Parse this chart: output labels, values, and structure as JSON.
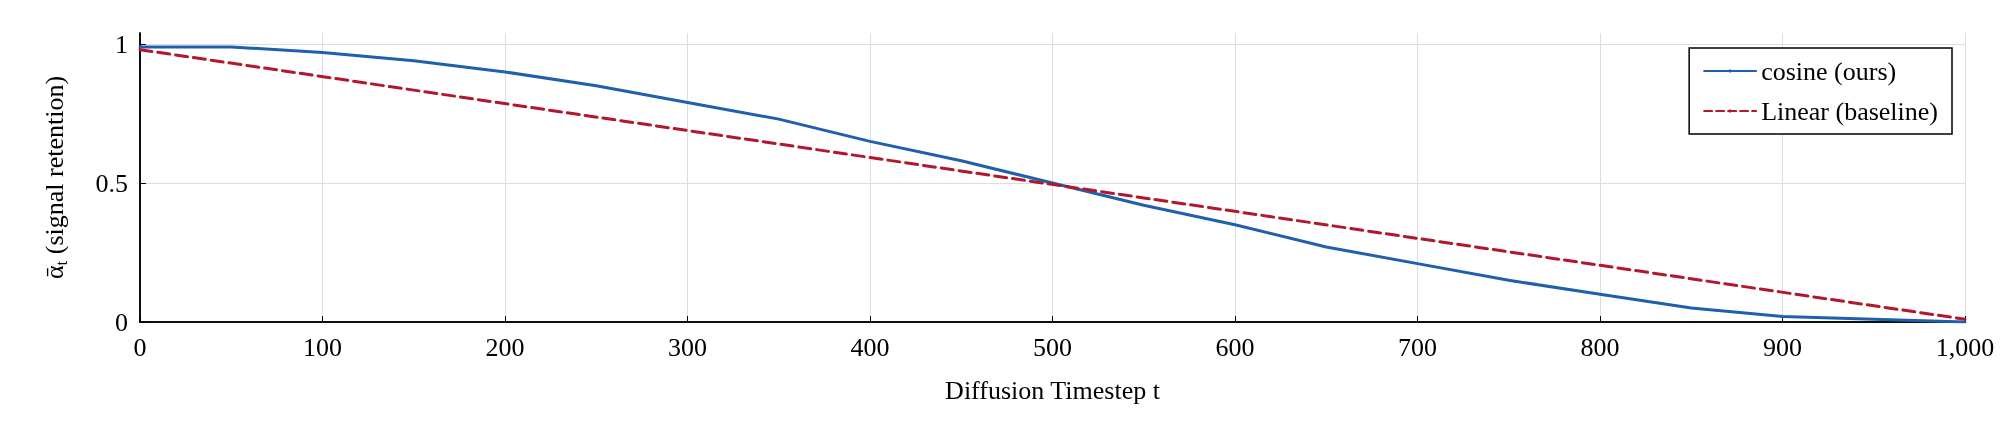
{
  "chart_data": {
    "type": "line",
    "xlabel": "Diffusion Timestep t",
    "ylabel": "ᾱ$_{t}$ (signal retention)",
    "series": [
      {
        "name": "cosine (ours)",
        "color": "#1f5fad",
        "line_style": "solid",
        "x": [
          0,
          50,
          100,
          150,
          200,
          250,
          300,
          350,
          400,
          450,
          500,
          550,
          600,
          650,
          700,
          750,
          800,
          850,
          900,
          950,
          1000
        ],
        "values": [
          0.99,
          0.99,
          0.97,
          0.94,
          0.9,
          0.85,
          0.79,
          0.73,
          0.65,
          0.58,
          0.5,
          0.42,
          0.35,
          0.27,
          0.21,
          0.15,
          0.1,
          0.05,
          0.02,
          0.01,
          0
        ]
      },
      {
        "name": "Linear (baseline)",
        "color": "#b2182b",
        "line_style": "dashed",
        "x": [
          0,
          1000
        ],
        "values": [
          0.98,
          0.01
        ]
      }
    ],
    "xlim": [
      0,
      1000
    ],
    "xticks": [
      0,
      100,
      200,
      300,
      400,
      500,
      600,
      700,
      800,
      900,
      {
        "value": 1000,
        "label": "1,000"
      }
    ],
    "ylim": [
      0,
      1.04
    ],
    "yticks": [
      0,
      0.5,
      1
    ],
    "grid": true,
    "legend": "top right",
    "marker": "none"
  }
}
